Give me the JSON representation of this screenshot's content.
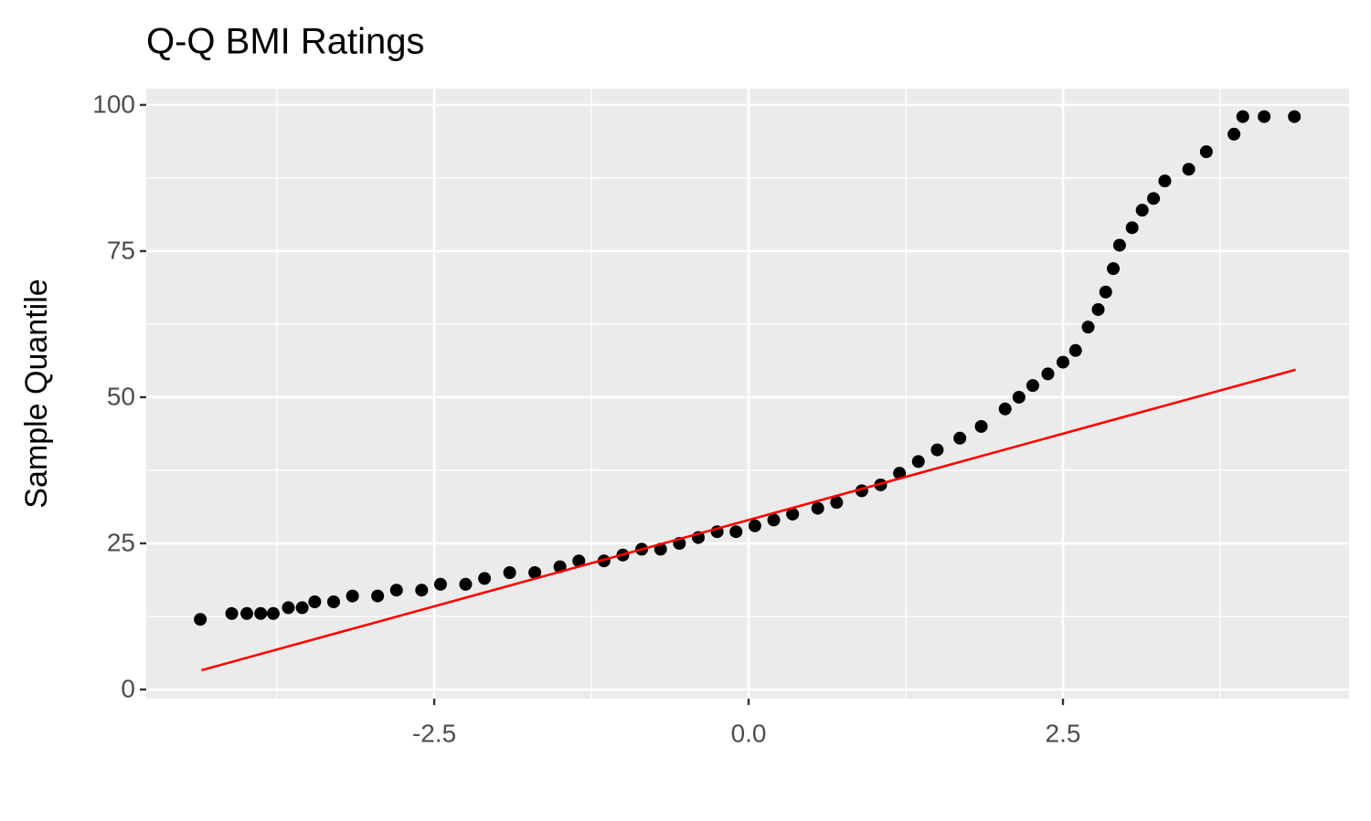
{
  "chart_data": {
    "type": "scatter",
    "title": "Q-Q BMI Ratings",
    "y_label": "Sample Quantile",
    "x": [
      -4.36,
      -4.11,
      -3.99,
      -3.88,
      -3.78,
      -3.66,
      -3.55,
      -3.45,
      -3.3,
      -3.15,
      -2.95,
      -2.8,
      -2.6,
      -2.45,
      -2.25,
      -2.1,
      -1.9,
      -1.7,
      -1.5,
      -1.35,
      -1.15,
      -1.0,
      -0.85,
      -0.7,
      -0.55,
      -0.4,
      -0.25,
      -0.1,
      0.05,
      0.2,
      0.35,
      0.55,
      0.7,
      0.9,
      1.05,
      1.2,
      1.35,
      1.5,
      1.68,
      1.85,
      2.04,
      2.15,
      2.26,
      2.38,
      2.5,
      2.6,
      2.7,
      2.78,
      2.84,
      2.9,
      2.95,
      3.05,
      3.13,
      3.22,
      3.31,
      3.5,
      3.64,
      3.86,
      3.93,
      4.1,
      4.34
    ],
    "y": [
      12,
      13,
      13,
      13,
      13,
      14,
      14,
      15,
      15,
      16,
      16,
      17,
      17,
      18,
      18,
      19,
      20,
      20,
      21,
      22,
      22,
      23,
      24,
      24,
      25,
      26,
      27,
      27,
      28,
      29,
      30,
      31,
      32,
      34,
      35,
      37,
      39,
      41,
      43,
      45,
      48,
      50,
      52,
      54,
      56,
      58,
      62,
      65,
      68,
      72,
      76,
      79,
      82,
      84,
      87,
      89,
      92,
      95,
      98,
      98,
      98
    ],
    "color": "#000000",
    "reference_line": {
      "x": [
        -4.35,
        4.35
      ],
      "y": [
        3.3,
        54.7
      ],
      "color": "#ff0000"
    },
    "xlim": [
      -4.79,
      4.775
    ],
    "ylim": [
      -1.56,
      102.8
    ],
    "xticks": [
      -2.5,
      {
        "value": 0,
        "label": "0.0"
      },
      2.5
    ],
    "yticks": [
      0,
      25,
      50,
      75,
      100
    ],
    "minor_xticks": [
      -3.75,
      -1.25,
      1.25,
      3.75
    ],
    "minor_yticks": [
      12.5,
      37.5,
      62.5,
      87.5
    ],
    "grid": true
  }
}
